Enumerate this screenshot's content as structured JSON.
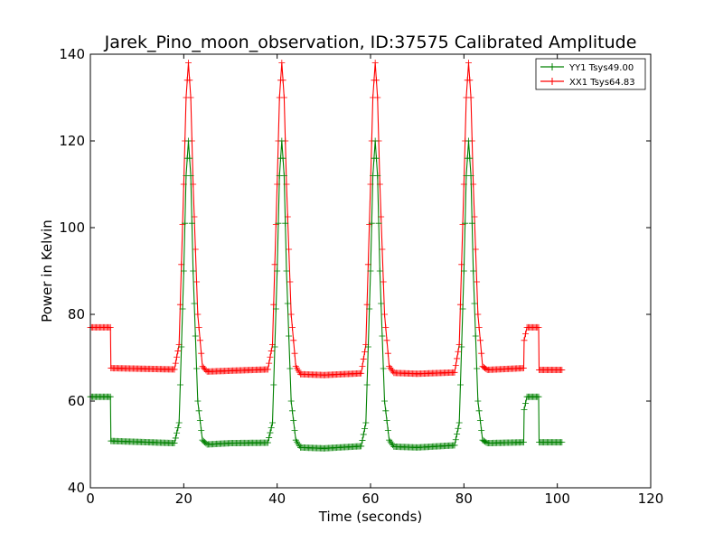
{
  "chart_data": {
    "type": "line",
    "title": "Jarek_Pino_moon_observation, ID:37575 Calibrated Amplitude",
    "xlabel": "Time (seconds)",
    "ylabel": "Power in Kelvin",
    "xlim": [
      0,
      120
    ],
    "ylim": [
      40,
      140
    ],
    "xticks": [
      0,
      20,
      40,
      60,
      80,
      100,
      120
    ],
    "yticks": [
      40,
      60,
      80,
      100,
      120,
      140
    ],
    "grid": false,
    "legend_position": "top-right",
    "marker": "+",
    "series": [
      {
        "name": "YY1 Tsys49.00",
        "color": "#008000",
        "x": [
          0,
          4.3,
          4.4,
          18,
          19,
          20,
          20.5,
          21,
          21.5,
          22,
          23,
          24,
          25,
          30,
          38,
          39,
          40,
          40.5,
          41,
          41.5,
          42,
          43,
          44,
          45,
          50,
          58,
          59,
          60,
          60.5,
          61,
          61.5,
          62,
          63,
          64,
          65,
          70,
          78,
          79,
          80,
          80.5,
          81,
          81.5,
          82,
          83,
          84,
          85,
          92.8,
          92.9,
          93.5,
          96,
          96.1,
          101
        ],
        "y": [
          61,
          61,
          50.8,
          50.3,
          55,
          90,
          112,
          120,
          112,
          90,
          60,
          51,
          50,
          50.3,
          50.4,
          55,
          90,
          112,
          120,
          112,
          90,
          60,
          51,
          49.3,
          49.1,
          49.6,
          55,
          90,
          112,
          120,
          112,
          90,
          60,
          51,
          49.5,
          49.3,
          49.8,
          55,
          90,
          112,
          120,
          112,
          90,
          60,
          51,
          50.3,
          50.5,
          58,
          61,
          61,
          50.5,
          50.5
        ]
      },
      {
        "name": "XX1 Tsys64.83",
        "color": "#ff0000",
        "x": [
          0,
          4.3,
          4.4,
          18,
          19,
          20,
          20.5,
          21,
          21.5,
          22,
          23,
          24,
          25,
          30,
          38,
          39,
          40,
          40.5,
          41,
          41.5,
          42,
          43,
          44,
          45,
          50,
          58,
          59,
          60,
          60.5,
          61,
          61.5,
          62,
          63,
          64,
          65,
          70,
          78,
          79,
          80,
          80.5,
          81,
          81.5,
          82,
          83,
          84,
          85,
          92.8,
          92.9,
          93.5,
          96,
          96.1,
          101
        ],
        "y": [
          77,
          77,
          67.6,
          67.3,
          73,
          110,
          130,
          138,
          130,
          110,
          80,
          68,
          66.8,
          67,
          67.3,
          73,
          110,
          130,
          138,
          130,
          110,
          80,
          68,
          66.2,
          66,
          66.4,
          73,
          110,
          130,
          138,
          130,
          110,
          80,
          68,
          66.5,
          66.3,
          66.6,
          73,
          110,
          130,
          138,
          130,
          110,
          80,
          68,
          67.2,
          67.6,
          74,
          77,
          77,
          67.2,
          67.2
        ]
      }
    ]
  }
}
